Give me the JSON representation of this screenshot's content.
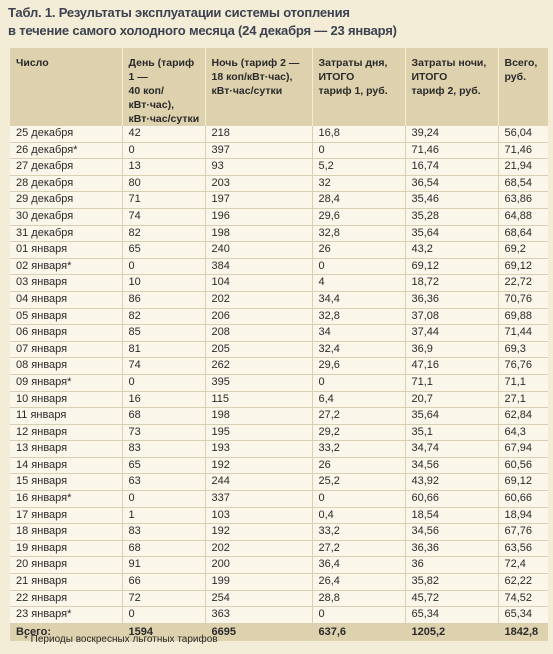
{
  "title": [
    "Табл. 1. Результаты эксплуатации системы отопления",
    "в течение самого холодного месяца (24 декабря — 23 января)"
  ],
  "table": {
    "headers": [
      [
        "Число"
      ],
      [
        "День (тариф 1 —",
        "40 коп/кВт·час),",
        "кВт·час/сутки"
      ],
      [
        "Ночь (тариф 2 —",
        "18 коп/кВт·час),",
        "кВт·час/сутки"
      ],
      [
        "Затраты дня,",
        "ИТОГО",
        "тариф 1, руб."
      ],
      [
        "Затраты ночи,",
        "ИТОГО",
        "тариф 2, руб."
      ],
      [
        "Всего,",
        "руб."
      ]
    ],
    "rows": [
      [
        "25 декабря",
        "42",
        "218",
        "16,8",
        "39,24",
        "56,04"
      ],
      [
        "26 декабря*",
        "0",
        "397",
        "0",
        "71,46",
        "71,46"
      ],
      [
        "27 декабря",
        "13",
        "93",
        "5,2",
        "16,74",
        "21,94"
      ],
      [
        "28 декабря",
        "80",
        "203",
        "32",
        "36,54",
        "68,54"
      ],
      [
        "29 декабря",
        "71",
        "197",
        "28,4",
        "35,46",
        "63,86"
      ],
      [
        "30 декабря",
        "74",
        "196",
        "29,6",
        "35,28",
        "64,88"
      ],
      [
        "31 декабря",
        "82",
        "198",
        "32,8",
        "35,64",
        "68,64"
      ],
      [
        "01 января",
        "65",
        "240",
        "26",
        "43,2",
        "69,2"
      ],
      [
        "02 января*",
        "0",
        "384",
        "0",
        "69,12",
        "69,12"
      ],
      [
        "03 января",
        "10",
        "104",
        "4",
        "18,72",
        "22,72"
      ],
      [
        "04 января",
        "86",
        "202",
        "34,4",
        "36,36",
        "70,76"
      ],
      [
        "05 января",
        "82",
        "206",
        "32,8",
        "37,08",
        "69,88"
      ],
      [
        "06 января",
        "85",
        "208",
        "34",
        "37,44",
        "71,44"
      ],
      [
        "07 января",
        "81",
        "205",
        "32,4",
        "36,9",
        "69,3"
      ],
      [
        "08 января",
        "74",
        "262",
        "29,6",
        "47,16",
        "76,76"
      ],
      [
        "09 января*",
        "0",
        "395",
        "0",
        "71,1",
        "71,1"
      ],
      [
        "10 января",
        "16",
        "115",
        "6,4",
        "20,7",
        "27,1"
      ],
      [
        "11 января",
        "68",
        "198",
        "27,2",
        "35,64",
        "62,84"
      ],
      [
        "12 января",
        "73",
        "195",
        "29,2",
        "35,1",
        "64,3"
      ],
      [
        "13 января",
        "83",
        "193",
        "33,2",
        "34,74",
        "67,94"
      ],
      [
        "14 января",
        "65",
        "192",
        "26",
        "34,56",
        "60,56"
      ],
      [
        "15 января",
        "63",
        "244",
        "25,2",
        "43,92",
        "69,12"
      ],
      [
        "16 января*",
        "0",
        "337",
        "0",
        "60,66",
        "60,66"
      ],
      [
        "17 января",
        "1",
        "103",
        "0,4",
        "18,54",
        "18,94"
      ],
      [
        "18 января",
        "83",
        "192",
        "33,2",
        "34,56",
        "67,76"
      ],
      [
        "19 января",
        "68",
        "202",
        "27,2",
        "36,36",
        "63,56"
      ],
      [
        "20 января",
        "91",
        "200",
        "36,4",
        "36",
        "72,4"
      ],
      [
        "21 января",
        "66",
        "199",
        "26,4",
        "35,82",
        "62,22"
      ],
      [
        "22 января",
        "72",
        "254",
        "28,8",
        "45,72",
        "74,52"
      ],
      [
        "23 января*",
        "0",
        "363",
        "0",
        "65,34",
        "65,34"
      ]
    ],
    "total": [
      "Всего:",
      "1594",
      "6695",
      "637,6",
      "1205,2",
      "1842,8"
    ]
  },
  "footnote": "* Периоды воскресных льготных тарифов"
}
